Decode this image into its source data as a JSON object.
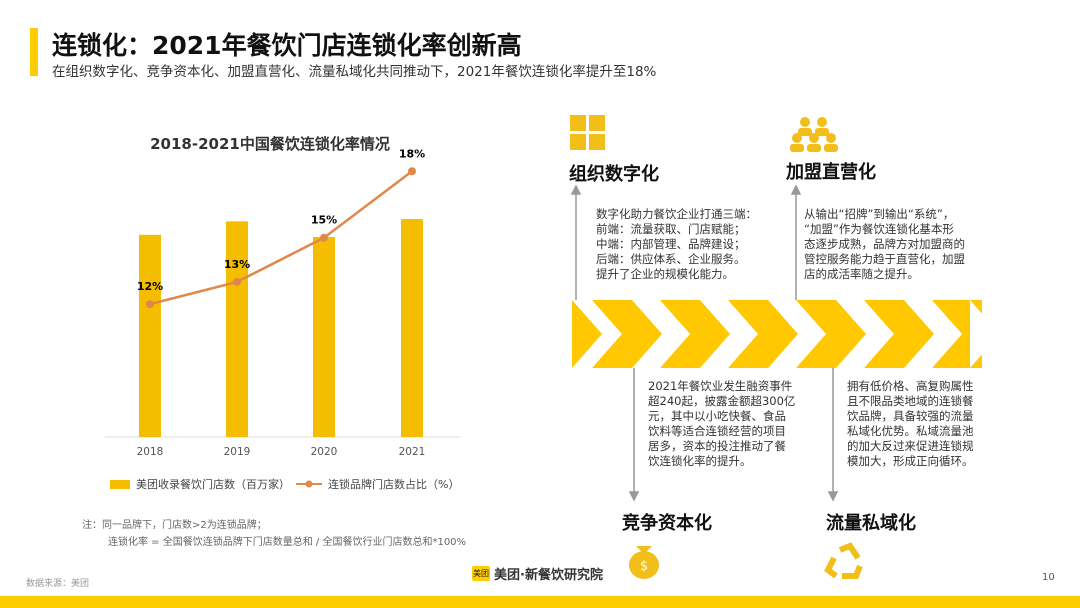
{
  "header": {
    "title": "连锁化：2021年餐饮门店连锁化率创新高",
    "subtitle": "在组织数字化、竞争资本化、加盟直营化、流量私域化共同推动下，2021年餐饮连锁化率提升至18%"
  },
  "chart_data": {
    "type": "bar+line",
    "title": "2018-2021中国餐饮连锁化率情况",
    "categories": [
      "2018",
      "2019",
      "2020",
      "2021"
    ],
    "series": [
      {
        "name": "美团收录餐饮门店数（百万家）",
        "type": "bar",
        "values": [
          9.0,
          9.6,
          8.9,
          9.7
        ],
        "color": "#f5bd00"
      },
      {
        "name": "连锁品牌门店数占比（%）",
        "type": "line",
        "values": [
          12,
          13,
          15,
          18
        ],
        "labels": [
          "12%",
          "13%",
          "15%",
          "18%"
        ],
        "color": "#e0874a"
      }
    ],
    "bar_ylim": [
      0,
      15
    ],
    "line_ylim": [
      6,
      20
    ],
    "grid": false,
    "legend": "bottom"
  },
  "notes": {
    "line1": "注：同一品牌下，门店数>2为连锁品牌；",
    "line2": "连锁化率 = 全国餐饮连锁品牌下门店数量总和 / 全国餐饮行业门店数总和*100%",
    "source": "数据来源：美团"
  },
  "drivers": [
    {
      "title": "组织数字化",
      "icon": "calculator-icon",
      "text": [
        "数字化助力餐饮企业打通三端：",
        "前端：流量获取、门店赋能；",
        "中端：内部管理、品牌建设；",
        "后端：供应体系、企业服务。",
        "提升了企业的规模化能力。"
      ]
    },
    {
      "title": "加盟直营化",
      "icon": "people-group-icon",
      "text": [
        "从输出“招牌”到输出“系统”，",
        "“加盟”作为餐饮连锁化基本形",
        "态逐步成熟，品牌方对加盟商的",
        "管控服务能力趋于直营化，加盟",
        "店的成活率随之提升。"
      ]
    },
    {
      "title": "竞争资本化",
      "icon": "money-bag-icon",
      "text": [
        "2021年餐饮业发生融资事件",
        "超240起，披露金额超300亿",
        "元，其中以小吃快餐、食品",
        "饮料等适合连锁经营的项目",
        "居多，资本的投注推动了餐",
        "饮连锁化率的提升。"
      ]
    },
    {
      "title": "流量私域化",
      "icon": "recycle-icon",
      "text": [
        "拥有低价格、高复购属性",
        "且不限品类地域的连锁餐",
        "饮品牌，具备较强的流量",
        "私域化优势。私域流量池",
        "的加大反过来促进连锁规",
        "模加大，形成正向循环。"
      ]
    }
  ],
  "footer": {
    "brand": "美团·新餐饮研究院",
    "logo_text": "美团",
    "page": "10"
  },
  "colors": {
    "accent": "#ffcc00",
    "bar": "#f5bd00",
    "line": "#e0874a"
  }
}
